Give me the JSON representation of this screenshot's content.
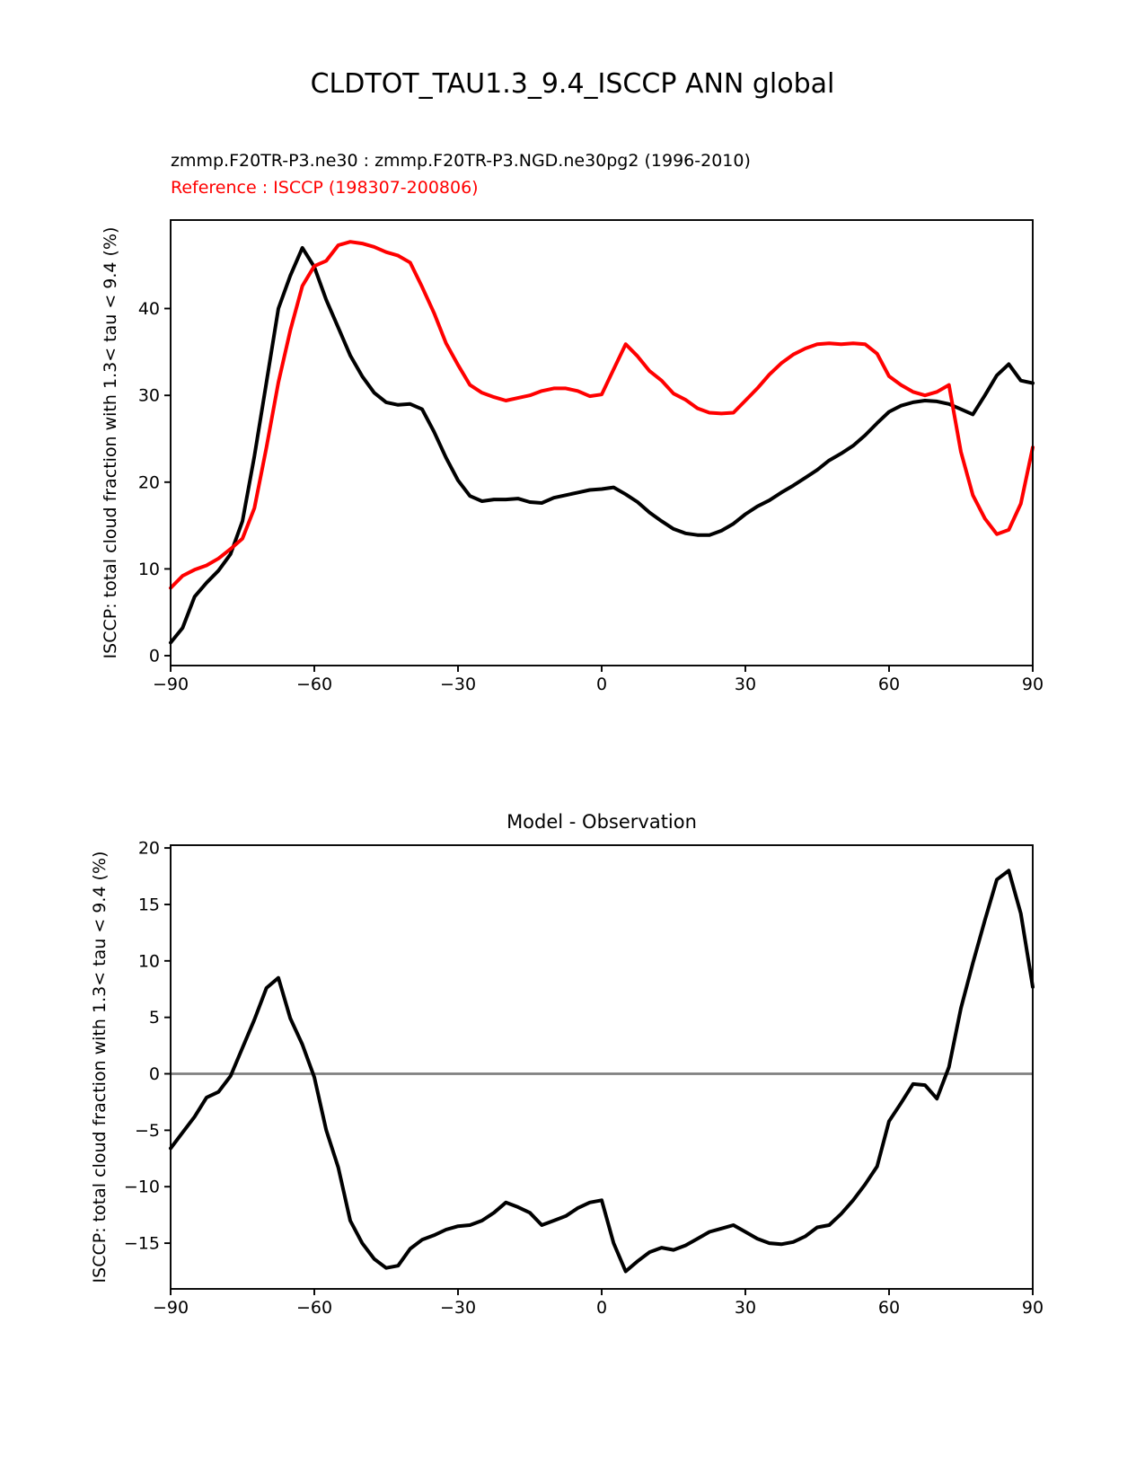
{
  "figure": {
    "title": "CLDTOT_TAU1.3_9.4_ISCCP ANN global",
    "subtitle_model": "zmmp.F20TR-P3.ne30 : zmmp.F20TR-P3.NGD.ne30pg2 (1996-2010)",
    "subtitle_reference": "Reference : ISCCP (198307-200806)",
    "colors": {
      "model": "#000000",
      "reference": "#ff0000",
      "zero_line": "#808080",
      "axes": "#000000"
    }
  },
  "chart_data": [
    {
      "type": "line",
      "title": "",
      "xlabel": "",
      "ylabel": "ISCCP: total cloud fraction with 1.3< tau < 9.4 (%)",
      "xlim": [
        -90,
        90
      ],
      "ylim": [
        -1.14,
        50.2
      ],
      "xticks": [
        -90,
        -60,
        -30,
        0,
        30,
        60,
        90
      ],
      "yticks": [
        0,
        10,
        20,
        30,
        40
      ],
      "grid": false,
      "legend_position": "none",
      "x": [
        -90,
        -87.5,
        -85,
        -82.5,
        -80,
        -77.5,
        -75,
        -72.5,
        -70,
        -67.5,
        -65,
        -62.5,
        -60,
        -57.5,
        -55,
        -52.5,
        -50,
        -47.5,
        -45,
        -42.5,
        -40,
        -37.5,
        -35,
        -32.5,
        -30,
        -27.5,
        -25,
        -22.5,
        -20,
        -17.5,
        -15,
        -12.5,
        -10,
        -7.5,
        -5,
        -2.5,
        0,
        2.5,
        5,
        7.5,
        10,
        12.5,
        15,
        17.5,
        20,
        22.5,
        25,
        27.5,
        30,
        32.5,
        35,
        37.5,
        40,
        42.5,
        45,
        47.5,
        50,
        52.5,
        55,
        57.5,
        60,
        62.5,
        65,
        67.5,
        70,
        72.5,
        75,
        77.5,
        80,
        82.5,
        85,
        87.5,
        90
      ],
      "series": [
        {
          "name": "zmmp.F20TR-P3.ne30 : zmmp.F20TR-P3.NGD.ne30pg2 (1996-2010)",
          "color": "#000000",
          "values": [
            1.5,
            3.2,
            6.8,
            8.4,
            9.8,
            11.7,
            15.5,
            23.0,
            31.5,
            40.0,
            43.8,
            47.0,
            44.8,
            41.0,
            37.8,
            34.6,
            32.2,
            30.3,
            29.2,
            28.9,
            29.0,
            28.4,
            25.8,
            22.8,
            20.2,
            18.4,
            17.8,
            18.0,
            18.0,
            18.1,
            17.7,
            17.6,
            18.2,
            18.5,
            18.8,
            19.1,
            19.2,
            19.4,
            18.6,
            17.7,
            16.5,
            15.5,
            14.6,
            14.1,
            13.9,
            13.9,
            14.4,
            15.2,
            16.3,
            17.2,
            17.9,
            18.8,
            19.6,
            20.5,
            21.4,
            22.5,
            23.3,
            24.2,
            25.4,
            26.8,
            28.1,
            28.8,
            29.2,
            29.4,
            29.3,
            29.0,
            28.4,
            27.8,
            30.0,
            32.3,
            33.6,
            31.7,
            31.4
          ]
        },
        {
          "name": "Reference : ISCCP (198307-200806)",
          "color": "#ff0000",
          "values": [
            7.8,
            9.2,
            9.9,
            10.4,
            11.2,
            12.3,
            13.5,
            17.0,
            24.0,
            31.5,
            37.5,
            42.6,
            44.9,
            45.5,
            47.3,
            47.7,
            47.5,
            47.1,
            46.5,
            46.1,
            45.3,
            42.5,
            39.5,
            36.0,
            33.5,
            31.2,
            30.3,
            29.8,
            29.4,
            29.7,
            30.0,
            30.5,
            30.8,
            30.8,
            30.5,
            29.9,
            30.1,
            33.0,
            35.9,
            34.5,
            32.8,
            31.7,
            30.2,
            29.5,
            28.5,
            28.0,
            27.9,
            28.0,
            29.4,
            30.8,
            32.4,
            33.7,
            34.7,
            35.4,
            35.9,
            36.0,
            35.9,
            36.0,
            35.9,
            34.8,
            32.2,
            31.2,
            30.4,
            30.0,
            30.4,
            31.2,
            23.5,
            18.5,
            15.8,
            14.0,
            14.5,
            17.5,
            24.0
          ]
        }
      ]
    },
    {
      "type": "line",
      "title": "Model - Observation",
      "xlabel": "",
      "ylabel": "ISCCP: total cloud fraction with 1.3< tau < 9.4 (%)",
      "xlim": [
        -90,
        90
      ],
      "ylim": [
        -19.05,
        20.25
      ],
      "xticks": [
        -90,
        -60,
        -30,
        0,
        30,
        60,
        90
      ],
      "yticks": [
        -15,
        -10,
        -5,
        0,
        5,
        10,
        15,
        20
      ],
      "grid": false,
      "zero_line": true,
      "legend_position": "none",
      "x": [
        -90,
        -87.5,
        -85,
        -82.5,
        -80,
        -77.5,
        -75,
        -72.5,
        -70,
        -67.5,
        -65,
        -62.5,
        -60,
        -57.5,
        -55,
        -52.5,
        -50,
        -47.5,
        -45,
        -42.5,
        -40,
        -37.5,
        -35,
        -32.5,
        -30,
        -27.5,
        -25,
        -22.5,
        -20,
        -17.5,
        -15,
        -12.5,
        -10,
        -7.5,
        -5,
        -2.5,
        0,
        2.5,
        5,
        7.5,
        10,
        12.5,
        15,
        17.5,
        20,
        22.5,
        25,
        27.5,
        30,
        32.5,
        35,
        37.5,
        40,
        42.5,
        45,
        47.5,
        50,
        52.5,
        55,
        57.5,
        60,
        62.5,
        65,
        67.5,
        70,
        72.5,
        75,
        77.5,
        80,
        82.5,
        85,
        87.5,
        90
      ],
      "series": [
        {
          "name": "Model - Observation",
          "color": "#000000",
          "values": [
            -6.6,
            -5.2,
            -3.8,
            -2.1,
            -1.6,
            -0.2,
            2.3,
            4.8,
            7.6,
            8.5,
            4.9,
            2.6,
            -0.3,
            -5.0,
            -8.3,
            -13.0,
            -15.0,
            -16.4,
            -17.2,
            -17.0,
            -15.5,
            -14.7,
            -14.3,
            -13.8,
            -13.5,
            -13.4,
            -13.0,
            -12.3,
            -11.4,
            -11.8,
            -12.3,
            -13.4,
            -13.0,
            -12.6,
            -11.9,
            -11.4,
            -11.2,
            -15.0,
            -17.5,
            -16.6,
            -15.8,
            -15.4,
            -15.6,
            -15.2,
            -14.6,
            -14.0,
            -13.7,
            -13.4,
            -14.0,
            -14.6,
            -15.0,
            -15.1,
            -14.9,
            -14.4,
            -13.6,
            -13.4,
            -12.4,
            -11.2,
            -9.8,
            -8.2,
            -4.2,
            -2.6,
            -0.9,
            -1.0,
            -2.2,
            0.6,
            5.8,
            9.8,
            13.6,
            17.2,
            18.0,
            14.2,
            7.7
          ]
        }
      ]
    }
  ]
}
